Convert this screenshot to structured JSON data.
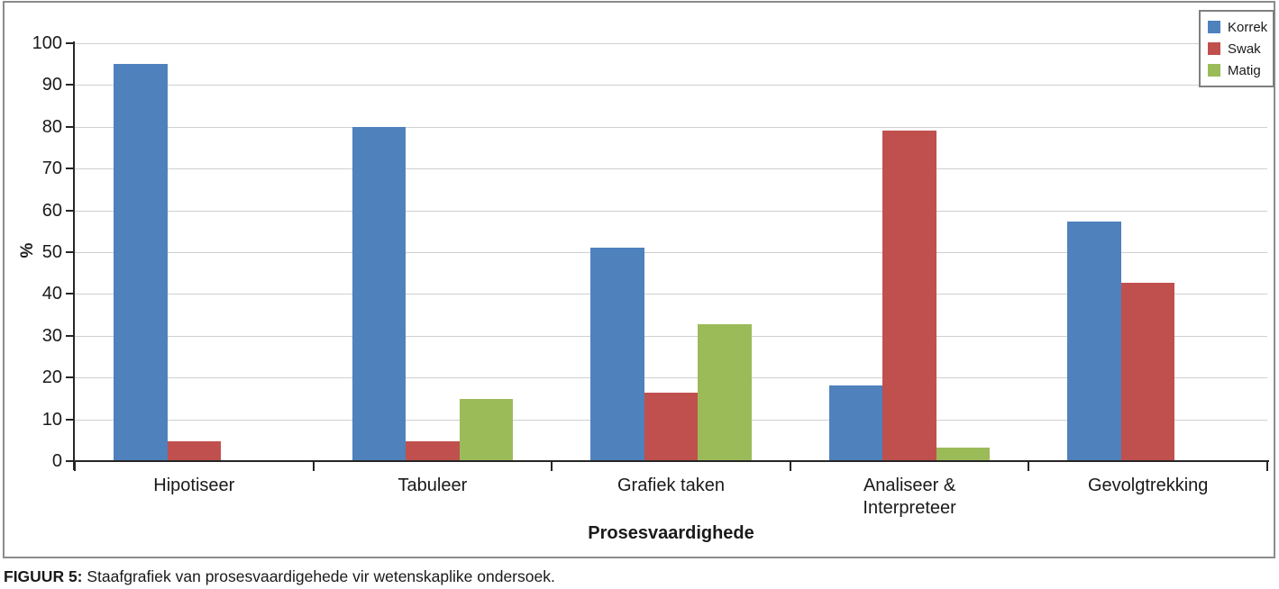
{
  "figure": {
    "caption_prefix": "FIGUUR 5:",
    "caption_text": " Staafgrafiek van prosesvaardigehede vir wetenskaplike ondersoek."
  },
  "chart_data": {
    "type": "bar",
    "title": "",
    "xlabel": "Prosesvaardighede",
    "ylabel": "%",
    "ylim": [
      0,
      100
    ],
    "ytick_step": 10,
    "grid": true,
    "legend_position": "top-right",
    "categories": [
      "Hipotiseer",
      "Tabuleer",
      "Grafiek taken",
      "Analiseer &\nInterpreteer",
      "Gevolgtrekking"
    ],
    "series": [
      {
        "name": "Korrek",
        "color": "#4F81BD",
        "values": [
          95,
          80,
          51,
          18,
          57.4
        ]
      },
      {
        "name": "Swak",
        "color": "#C0504D",
        "values": [
          4.8,
          4.8,
          16.4,
          79,
          42.6
        ]
      },
      {
        "name": "Matig",
        "color": "#9BBB59",
        "values": [
          0,
          14.8,
          32.8,
          3.2,
          0
        ]
      }
    ],
    "axis_color": "#262626",
    "gridline_color": "#cfcfcf"
  }
}
